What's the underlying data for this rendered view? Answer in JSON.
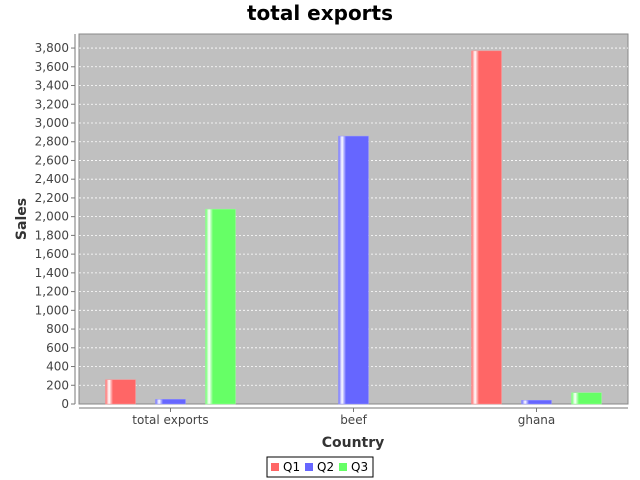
{
  "chart_data": {
    "type": "bar",
    "title": "total exports",
    "xlabel": "Country",
    "ylabel": "Sales",
    "categories": [
      "total exports",
      "beef",
      "ghana"
    ],
    "series": [
      {
        "name": "Q1",
        "color": "#ff6666",
        "values": [
          260,
          0,
          3770
        ]
      },
      {
        "name": "Q2",
        "color": "#6666ff",
        "values": [
          50,
          2860,
          40
        ]
      },
      {
        "name": "Q3",
        "color": "#66ff66",
        "values": [
          2080,
          0,
          120
        ]
      }
    ],
    "ylim": [
      0,
      3950
    ],
    "yticks": [
      0,
      200,
      400,
      600,
      800,
      1000,
      1200,
      1400,
      1600,
      1800,
      2000,
      2200,
      2400,
      2600,
      2800,
      3000,
      3200,
      3400,
      3600,
      3800
    ],
    "ytick_labels": [
      "0",
      "200",
      "400",
      "600",
      "800",
      "1,000",
      "1,200",
      "1,400",
      "1,600",
      "1,800",
      "2,000",
      "2,200",
      "2,400",
      "2,600",
      "2,800",
      "3,000",
      "3,200",
      "3,400",
      "3,600",
      "3,800"
    ],
    "grid": true,
    "legend_position": "bottom",
    "plot_background": "#c0c0c0"
  }
}
